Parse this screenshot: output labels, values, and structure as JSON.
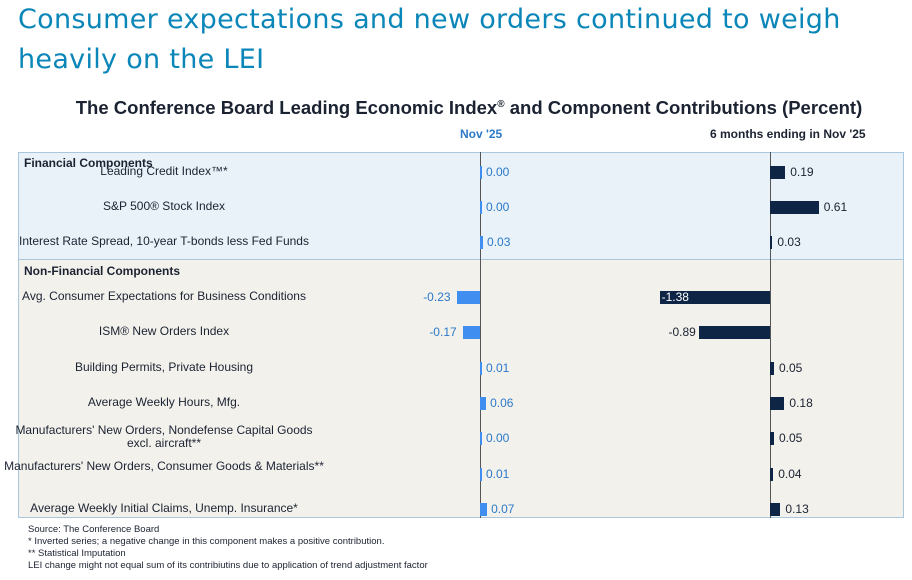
{
  "headline": "Consumer expectations and new orders continued to weigh heavily on the LEI",
  "chart_data": {
    "type": "bar",
    "title": "The Conference Board Leading Economic Index",
    "title_mark": "®",
    "title_suffix": " and Component Contributions (Percent)",
    "series": [
      {
        "name": "Nov  '25",
        "values": [
          0.0,
          0.0,
          0.03,
          -0.23,
          -0.17,
          0.01,
          0.06,
          0.0,
          0.01,
          0.07
        ],
        "labels": [
          "0.00",
          "0.00",
          "0.03",
          "-0.23",
          "-0.17",
          "0.01",
          "0.06",
          "0.00",
          "0.01",
          "0.07"
        ],
        "color": "#3f8ef0"
      },
      {
        "name": "6 months ending in Nov  '25",
        "values": [
          0.19,
          0.61,
          0.03,
          -1.38,
          -0.89,
          0.05,
          0.18,
          0.05,
          0.04,
          0.13
        ],
        "labels": [
          "0.19",
          "0.61",
          "0.03",
          "-1.38",
          "-0.89",
          "0.05",
          "0.18",
          "0.05",
          "0.04",
          "0.13"
        ],
        "color": "#0e2546"
      }
    ],
    "sections": [
      {
        "name": "Financial Components",
        "rows": [
          0,
          1,
          2
        ]
      },
      {
        "name": "Non-Financial Components",
        "rows": [
          3,
          4,
          5,
          6,
          7,
          8,
          9
        ]
      }
    ],
    "categories": [
      "Leading Credit Index™*",
      "S&P 500® Stock Index",
      "Interest Rate Spread, 10-year T-bonds less Fed Funds",
      "Avg. Consumer Expectations for Business Conditions",
      "ISM® New Orders Index",
      "Building Permits, Private Housing",
      "Average Weekly Hours, Mfg.",
      "Manufacturers' New Orders, Nondefense Capital Goods excl. aircraft**",
      "Manufacturers' New Orders, Consumer Goods & Materials**",
      "Average Weekly Initial Claims, Unemp. Insurance*"
    ]
  },
  "footnotes": [
    "Source: The Conference Board",
    "*  Inverted series; a negative change in this component makes a positive contribution.",
    "**  Statistical Imputation",
    "LEI change might not equal sum of its contribiutins due to application of trend adjustment factor"
  ]
}
